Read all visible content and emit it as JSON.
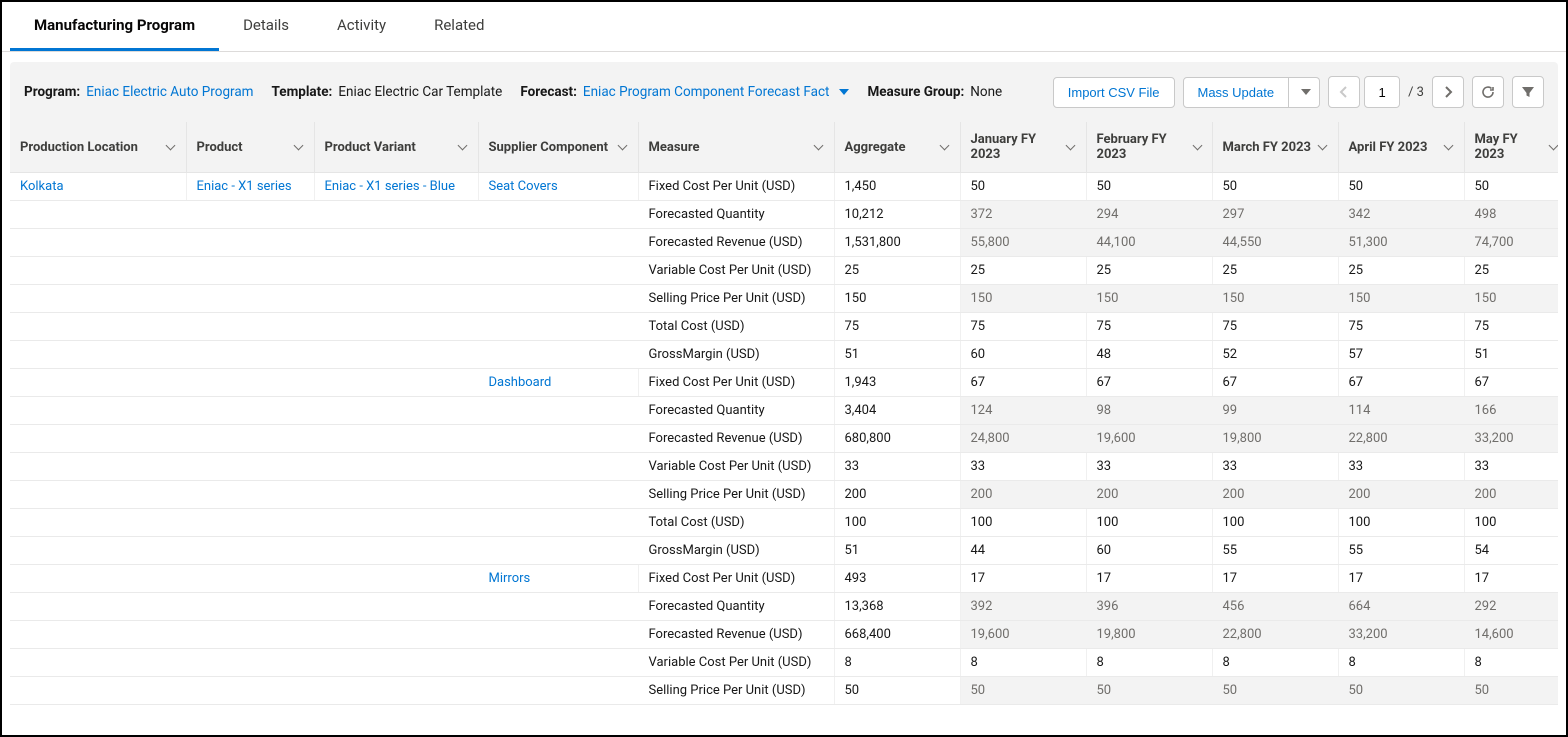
{
  "tabs": [
    "Manufacturing Program",
    "Details",
    "Activity",
    "Related"
  ],
  "active_tab": 0,
  "toolbar": {
    "program_label": "Program:",
    "program_value": "Eniac Electric Auto Program",
    "template_label": "Template:",
    "template_value": "Eniac Electric Car Template",
    "forecast_label": "Forecast:",
    "forecast_value": "Eniac Program Component Forecast Fact",
    "measure_group_label": "Measure Group:",
    "measure_group_value": "None",
    "import_btn": "Import CSV File",
    "mass_update_btn": "Mass Update",
    "page_current": "1",
    "page_total": "/ 3"
  },
  "columns": [
    "Production Location",
    "Product",
    "Product Variant",
    "Supplier Component",
    "Measure",
    "Aggregate",
    "January FY 2023",
    "February FY 2023",
    "March FY 2023",
    "April FY 2023",
    "May FY 2023"
  ],
  "first_row_meta": {
    "location": "Kolkata",
    "product": "Eniac - X1 series",
    "variant": "Eniac - X1 series - Blue"
  },
  "groups": [
    {
      "supplier": "Seat Covers",
      "rows": [
        {
          "measure": "Fixed Cost Per Unit (USD)",
          "agg": "1,450",
          "vals": [
            "50",
            "50",
            "50",
            "50",
            "50"
          ],
          "gray": false
        },
        {
          "measure": "Forecasted Quantity",
          "agg": "10,212",
          "vals": [
            "372",
            "294",
            "297",
            "342",
            "498"
          ],
          "gray": true
        },
        {
          "measure": "Forecasted Revenue (USD)",
          "agg": "1,531,800",
          "vals": [
            "55,800",
            "44,100",
            "44,550",
            "51,300",
            "74,700"
          ],
          "gray": true
        },
        {
          "measure": "Variable Cost Per Unit (USD)",
          "agg": "25",
          "vals": [
            "25",
            "25",
            "25",
            "25",
            "25"
          ],
          "gray": false
        },
        {
          "measure": "Selling Price Per Unit (USD)",
          "agg": "150",
          "vals": [
            "150",
            "150",
            "150",
            "150",
            "150"
          ],
          "gray": true
        },
        {
          "measure": "Total Cost (USD)",
          "agg": "75",
          "vals": [
            "75",
            "75",
            "75",
            "75",
            "75"
          ],
          "gray": false
        },
        {
          "measure": "GrossMargin (USD)",
          "agg": "51",
          "vals": [
            "60",
            "48",
            "52",
            "57",
            "51"
          ],
          "gray": false
        }
      ]
    },
    {
      "supplier": "Dashboard",
      "rows": [
        {
          "measure": "Fixed Cost Per Unit (USD)",
          "agg": "1,943",
          "vals": [
            "67",
            "67",
            "67",
            "67",
            "67"
          ],
          "gray": false
        },
        {
          "measure": "Forecasted Quantity",
          "agg": "3,404",
          "vals": [
            "124",
            "98",
            "99",
            "114",
            "166"
          ],
          "gray": true
        },
        {
          "measure": "Forecasted Revenue (USD)",
          "agg": "680,800",
          "vals": [
            "24,800",
            "19,600",
            "19,800",
            "22,800",
            "33,200"
          ],
          "gray": true
        },
        {
          "measure": "Variable Cost Per Unit (USD)",
          "agg": "33",
          "vals": [
            "33",
            "33",
            "33",
            "33",
            "33"
          ],
          "gray": false
        },
        {
          "measure": "Selling Price Per Unit (USD)",
          "agg": "200",
          "vals": [
            "200",
            "200",
            "200",
            "200",
            "200"
          ],
          "gray": true
        },
        {
          "measure": "Total Cost (USD)",
          "agg": "100",
          "vals": [
            "100",
            "100",
            "100",
            "100",
            "100"
          ],
          "gray": false
        },
        {
          "measure": "GrossMargin (USD)",
          "agg": "51",
          "vals": [
            "44",
            "60",
            "55",
            "55",
            "54"
          ],
          "gray": false
        }
      ]
    },
    {
      "supplier": "Mirrors",
      "rows": [
        {
          "measure": "Fixed Cost Per Unit (USD)",
          "agg": "493",
          "vals": [
            "17",
            "17",
            "17",
            "17",
            "17"
          ],
          "gray": false
        },
        {
          "measure": "Forecasted Quantity",
          "agg": "13,368",
          "vals": [
            "392",
            "396",
            "456",
            "664",
            "292"
          ],
          "gray": true
        },
        {
          "measure": "Forecasted Revenue (USD)",
          "agg": "668,400",
          "vals": [
            "19,600",
            "19,800",
            "22,800",
            "33,200",
            "14,600"
          ],
          "gray": true
        },
        {
          "measure": "Variable Cost Per Unit (USD)",
          "agg": "8",
          "vals": [
            "8",
            "8",
            "8",
            "8",
            "8"
          ],
          "gray": false
        },
        {
          "measure": "Selling Price Per Unit (USD)",
          "agg": "50",
          "vals": [
            "50",
            "50",
            "50",
            "50",
            "50"
          ],
          "gray": true
        }
      ]
    }
  ],
  "colors": {
    "link": "#0176d3",
    "header_bg": "#f3f3f3",
    "gray_text": "#706e6b",
    "border": "#e5e5e5"
  }
}
